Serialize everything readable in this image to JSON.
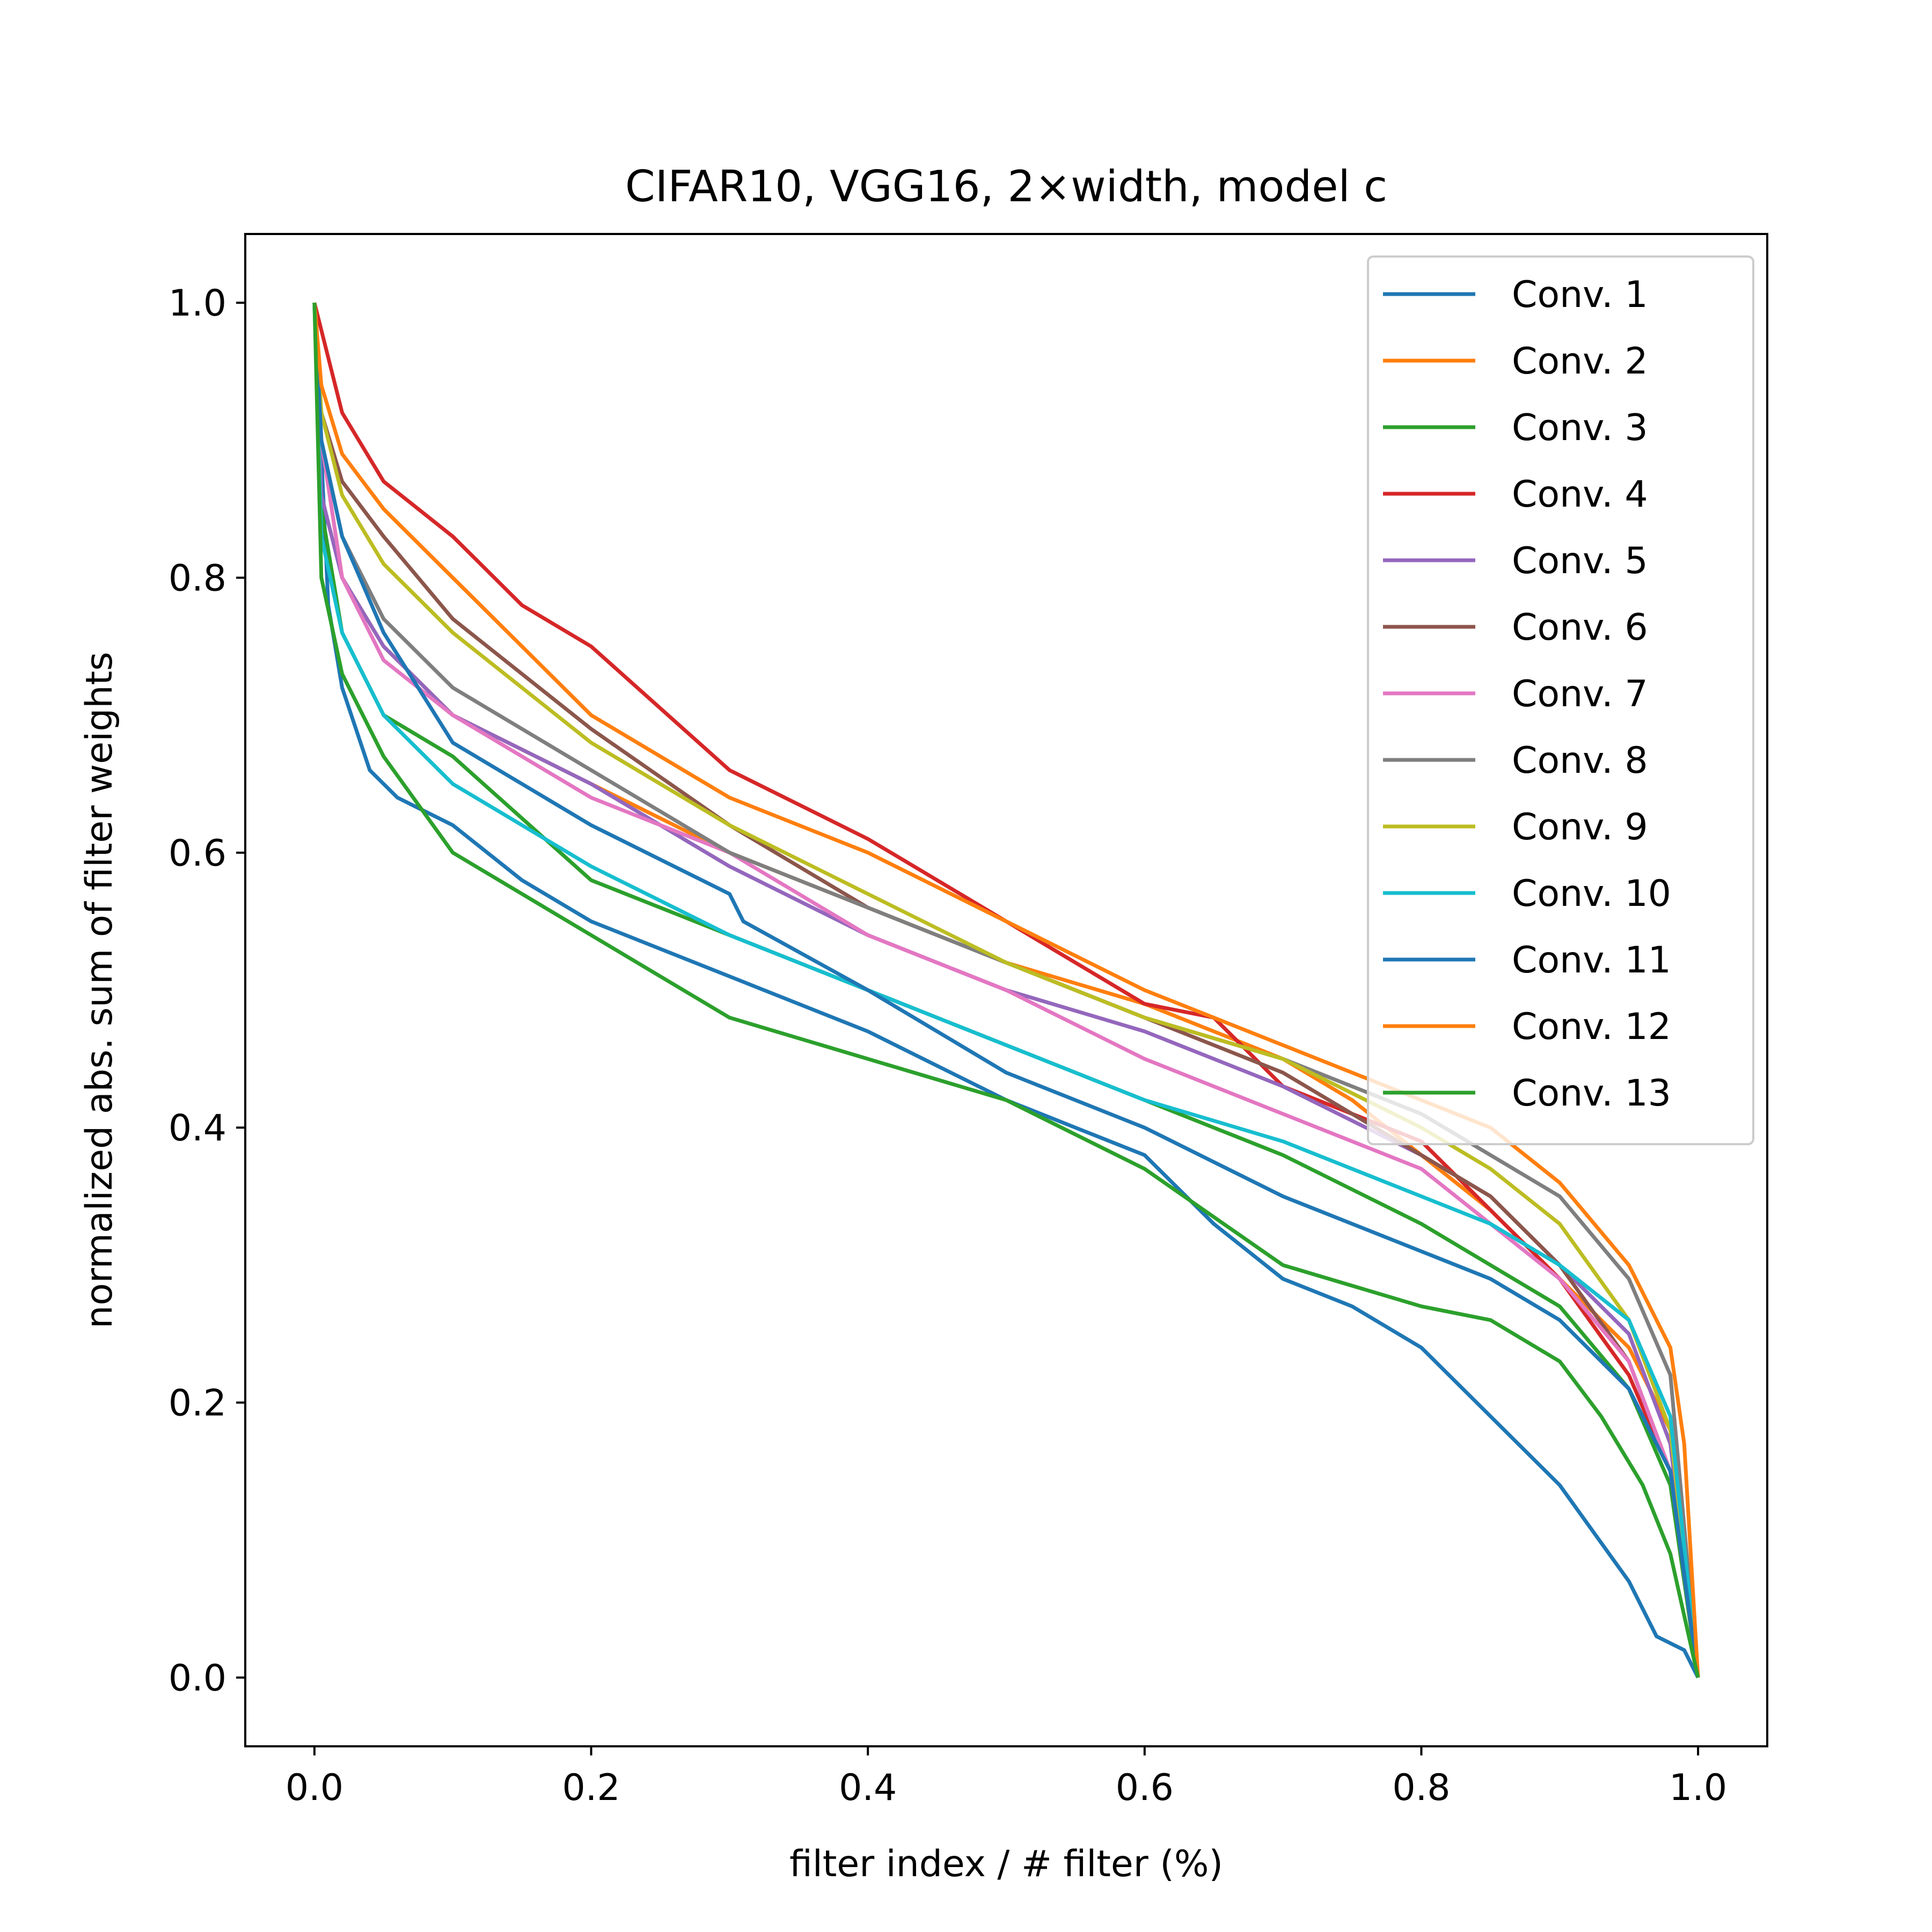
{
  "chart_data": {
    "type": "line",
    "title": "CIFAR10, VGG16, 2×width, model c",
    "xlabel": "filter index / # filter (%)",
    "ylabel": "normalized abs. sum of filter weights",
    "xlim": [
      -0.05,
      1.05
    ],
    "ylim": [
      -0.05,
      1.05
    ],
    "xticks": [
      0.0,
      0.2,
      0.4,
      0.6,
      0.8,
      1.0
    ],
    "xtick_labels": [
      "0.0",
      "0.2",
      "0.4",
      "0.6",
      "0.8",
      "1.0"
    ],
    "yticks": [
      0.0,
      0.2,
      0.4,
      0.6,
      0.8,
      1.0
    ],
    "ytick_labels": [
      "0.0",
      "0.2",
      "0.4",
      "0.6",
      "0.8",
      "1.0"
    ],
    "grid": false,
    "legend_position": "top-right",
    "series": [
      {
        "name": "Conv. 1",
        "color": "#1f77b4",
        "x": [
          0,
          0.01,
          0.02,
          0.04,
          0.06,
          0.1,
          0.15,
          0.2,
          0.3,
          0.4,
          0.5,
          0.6,
          0.65,
          0.7,
          0.75,
          0.8,
          0.85,
          0.9,
          0.95,
          0.97,
          0.99,
          1.0
        ],
        "y": [
          1.0,
          0.78,
          0.72,
          0.66,
          0.64,
          0.62,
          0.58,
          0.55,
          0.51,
          0.47,
          0.42,
          0.38,
          0.33,
          0.29,
          0.27,
          0.24,
          0.19,
          0.14,
          0.07,
          0.03,
          0.02,
          0.0
        ]
      },
      {
        "name": "Conv. 2",
        "color": "#ff7f0e",
        "x": [
          0,
          0.005,
          0.02,
          0.05,
          0.1,
          0.2,
          0.3,
          0.4,
          0.5,
          0.6,
          0.7,
          0.75,
          0.8,
          0.85,
          0.9,
          0.95,
          0.98,
          1.0
        ],
        "y": [
          1.0,
          0.9,
          0.8,
          0.75,
          0.7,
          0.65,
          0.6,
          0.56,
          0.52,
          0.49,
          0.45,
          0.42,
          0.38,
          0.34,
          0.29,
          0.24,
          0.18,
          0.0
        ]
      },
      {
        "name": "Conv. 3",
        "color": "#2ca02c",
        "x": [
          0,
          0.005,
          0.02,
          0.05,
          0.1,
          0.2,
          0.3,
          0.4,
          0.5,
          0.6,
          0.7,
          0.8,
          0.85,
          0.9,
          0.95,
          0.98,
          1.0
        ],
        "y": [
          1.0,
          0.85,
          0.76,
          0.7,
          0.67,
          0.58,
          0.54,
          0.5,
          0.46,
          0.42,
          0.38,
          0.33,
          0.3,
          0.27,
          0.21,
          0.14,
          0.0
        ]
      },
      {
        "name": "Conv. 4",
        "color": "#d62728",
        "x": [
          0,
          0.02,
          0.05,
          0.1,
          0.15,
          0.2,
          0.3,
          0.4,
          0.5,
          0.6,
          0.65,
          0.7,
          0.8,
          0.85,
          0.9,
          0.95,
          0.98,
          1.0
        ],
        "y": [
          1.0,
          0.92,
          0.87,
          0.83,
          0.78,
          0.75,
          0.66,
          0.61,
          0.55,
          0.49,
          0.48,
          0.43,
          0.39,
          0.34,
          0.29,
          0.22,
          0.15,
          0.0
        ]
      },
      {
        "name": "Conv. 5",
        "color": "#9467bd",
        "x": [
          0,
          0.005,
          0.02,
          0.05,
          0.1,
          0.2,
          0.3,
          0.4,
          0.5,
          0.6,
          0.7,
          0.8,
          0.85,
          0.9,
          0.95,
          0.98,
          1.0
        ],
        "y": [
          1.0,
          0.86,
          0.8,
          0.75,
          0.7,
          0.65,
          0.59,
          0.54,
          0.5,
          0.47,
          0.43,
          0.38,
          0.35,
          0.3,
          0.25,
          0.17,
          0.0
        ]
      },
      {
        "name": "Conv. 6",
        "color": "#8c564b",
        "x": [
          0,
          0.005,
          0.02,
          0.05,
          0.1,
          0.2,
          0.3,
          0.4,
          0.5,
          0.6,
          0.7,
          0.8,
          0.85,
          0.9,
          0.95,
          0.98,
          1.0
        ],
        "y": [
          1.0,
          0.92,
          0.87,
          0.83,
          0.77,
          0.69,
          0.62,
          0.56,
          0.52,
          0.48,
          0.44,
          0.38,
          0.35,
          0.3,
          0.23,
          0.15,
          0.0
        ]
      },
      {
        "name": "Conv. 7",
        "color": "#e377c2",
        "x": [
          0,
          0.005,
          0.02,
          0.05,
          0.1,
          0.2,
          0.3,
          0.4,
          0.5,
          0.6,
          0.7,
          0.8,
          0.85,
          0.9,
          0.95,
          0.98,
          1.0
        ],
        "y": [
          1.0,
          0.9,
          0.8,
          0.74,
          0.7,
          0.64,
          0.6,
          0.54,
          0.5,
          0.45,
          0.41,
          0.37,
          0.33,
          0.29,
          0.23,
          0.15,
          0.0
        ]
      },
      {
        "name": "Conv. 8",
        "color": "#7f7f7f",
        "x": [
          0,
          0.005,
          0.02,
          0.05,
          0.1,
          0.2,
          0.3,
          0.4,
          0.5,
          0.6,
          0.7,
          0.8,
          0.85,
          0.9,
          0.95,
          0.98,
          1.0
        ],
        "y": [
          1.0,
          0.9,
          0.83,
          0.77,
          0.72,
          0.66,
          0.6,
          0.56,
          0.52,
          0.48,
          0.45,
          0.41,
          0.38,
          0.35,
          0.29,
          0.22,
          0.0
        ]
      },
      {
        "name": "Conv. 9",
        "color": "#bcbd22",
        "x": [
          0,
          0.005,
          0.02,
          0.05,
          0.1,
          0.2,
          0.3,
          0.4,
          0.5,
          0.6,
          0.7,
          0.8,
          0.85,
          0.9,
          0.95,
          0.98,
          1.0
        ],
        "y": [
          1.0,
          0.92,
          0.86,
          0.81,
          0.76,
          0.68,
          0.62,
          0.57,
          0.52,
          0.48,
          0.45,
          0.4,
          0.37,
          0.33,
          0.26,
          0.18,
          0.0
        ]
      },
      {
        "name": "Conv. 10",
        "color": "#17becf",
        "x": [
          0,
          0.005,
          0.02,
          0.05,
          0.1,
          0.2,
          0.3,
          0.4,
          0.5,
          0.6,
          0.7,
          0.8,
          0.85,
          0.9,
          0.95,
          0.98,
          1.0
        ],
        "y": [
          1.0,
          0.83,
          0.76,
          0.7,
          0.65,
          0.59,
          0.54,
          0.5,
          0.46,
          0.42,
          0.39,
          0.35,
          0.33,
          0.3,
          0.26,
          0.19,
          0.0
        ]
      },
      {
        "name": "Conv. 11",
        "color": "#1f77b4",
        "x": [
          0,
          0.005,
          0.02,
          0.05,
          0.1,
          0.2,
          0.3,
          0.31,
          0.4,
          0.5,
          0.6,
          0.7,
          0.8,
          0.85,
          0.9,
          0.95,
          0.98,
          1.0
        ],
        "y": [
          1.0,
          0.9,
          0.83,
          0.76,
          0.68,
          0.62,
          0.57,
          0.55,
          0.5,
          0.44,
          0.4,
          0.35,
          0.31,
          0.29,
          0.26,
          0.21,
          0.15,
          0.0
        ]
      },
      {
        "name": "Conv. 12",
        "color": "#ff7f0e",
        "x": [
          0,
          0.005,
          0.02,
          0.05,
          0.1,
          0.15,
          0.2,
          0.3,
          0.4,
          0.5,
          0.6,
          0.7,
          0.8,
          0.85,
          0.9,
          0.95,
          0.98,
          0.99,
          1.0
        ],
        "y": [
          1.0,
          0.94,
          0.89,
          0.85,
          0.8,
          0.75,
          0.7,
          0.64,
          0.6,
          0.55,
          0.5,
          0.46,
          0.42,
          0.4,
          0.36,
          0.3,
          0.24,
          0.17,
          0.0
        ]
      },
      {
        "name": "Conv. 13",
        "color": "#2ca02c",
        "x": [
          0,
          0.005,
          0.02,
          0.05,
          0.1,
          0.2,
          0.3,
          0.4,
          0.5,
          0.6,
          0.7,
          0.8,
          0.85,
          0.9,
          0.93,
          0.96,
          0.98,
          1.0
        ],
        "y": [
          1.0,
          0.8,
          0.73,
          0.67,
          0.6,
          0.54,
          0.48,
          0.45,
          0.42,
          0.37,
          0.3,
          0.27,
          0.26,
          0.23,
          0.19,
          0.14,
          0.09,
          0.0
        ]
      }
    ]
  }
}
